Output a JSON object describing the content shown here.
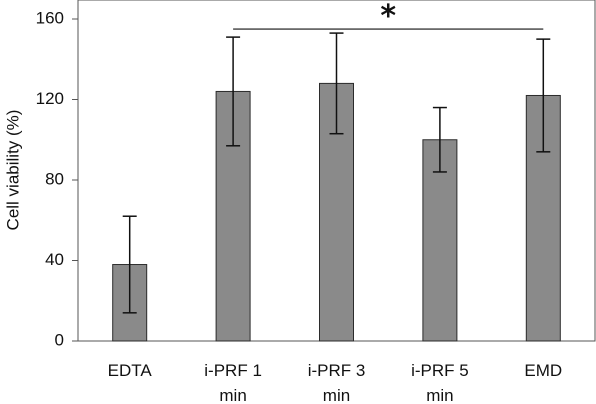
{
  "chart_data": {
    "type": "bar",
    "title": "",
    "xlabel": "",
    "ylabel": "Cell viability (%)",
    "ylim": [
      0,
      160
    ],
    "yticks": [
      0,
      40,
      80,
      120,
      160
    ],
    "grid": false,
    "legend": "none",
    "bar_color": "#8a8a8a",
    "bar_edge_color": "#2b2b2b",
    "categories": [
      [
        "EDTA"
      ],
      [
        "i-PRF 1",
        "min"
      ],
      [
        "i-PRF 3",
        "min"
      ],
      [
        "i-PRF 5",
        "min"
      ],
      [
        "EMD"
      ]
    ],
    "values": [
      38,
      124,
      128,
      100,
      122
    ],
    "error": [
      24,
      27,
      25,
      16,
      28
    ],
    "significance": {
      "label": "*",
      "from_category": 1,
      "to_category": 4,
      "y_value": 155
    }
  }
}
